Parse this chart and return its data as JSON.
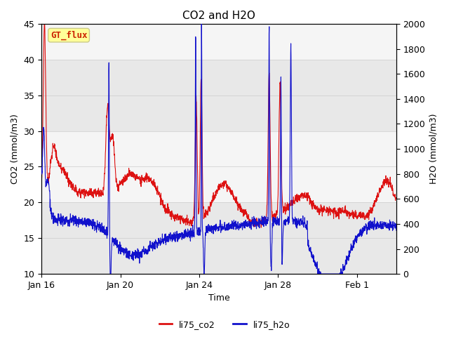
{
  "title": "CO2 and H2O",
  "xlabel": "Time",
  "ylabel_left": "CO2 (mmol/m3)",
  "ylabel_right": "H2O (mmol/m3)",
  "annotation_text": "GT_flux",
  "annotation_box_color": "#ffff99",
  "annotation_border_color": "#cccc88",
  "annotation_text_color": "#cc2200",
  "left_ylim": [
    10,
    45
  ],
  "right_ylim": [
    0,
    2000
  ],
  "left_yticks": [
    10,
    15,
    20,
    25,
    30,
    35,
    40,
    45
  ],
  "right_yticks": [
    0,
    200,
    400,
    600,
    800,
    1000,
    1200,
    1400,
    1600,
    1800,
    2000
  ],
  "background_color": "#ffffff",
  "plot_bg_color": "#f5f5f5",
  "band_colors": [
    "#e8e8e8",
    "#f5f5f5"
  ],
  "band_edges": [
    10,
    20,
    30,
    40,
    50
  ],
  "grid_color": "#cccccc",
  "line_co2_color": "#dd1111",
  "line_h2o_color": "#1111cc",
  "line_width": 0.8,
  "legend_co2": "li75_co2",
  "legend_h2o": "li75_h2o",
  "title_fontsize": 11,
  "axis_fontsize": 9,
  "tick_fontsize": 9,
  "xtick_labels": [
    "Jan 16",
    "Jan 20",
    "Jan 24",
    "Jan 28",
    "Feb 1"
  ],
  "xtick_positions": [
    0,
    4,
    8,
    12,
    16
  ],
  "xlim": [
    0,
    18
  ],
  "n_points": 2000,
  "seed": 7
}
